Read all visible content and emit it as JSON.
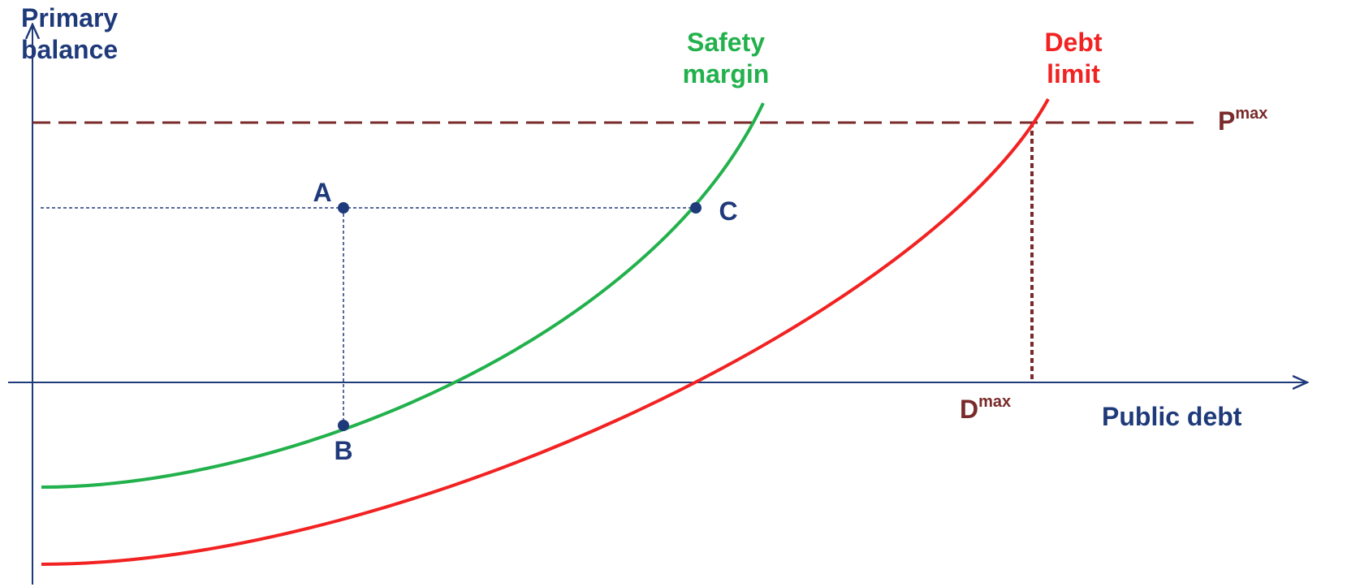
{
  "axes": {
    "y_label": [
      "Primary",
      "balance"
    ],
    "x_label": "Public debt"
  },
  "curves": {
    "safety_margin": [
      "Safety",
      "margin"
    ],
    "debt_limit": [
      "Debt",
      "limit"
    ]
  },
  "levels": {
    "p_max": {
      "base": "P",
      "sup": "max"
    },
    "d_max": {
      "base": "D",
      "sup": "max"
    }
  },
  "points": [
    "A",
    "B",
    "C"
  ]
}
